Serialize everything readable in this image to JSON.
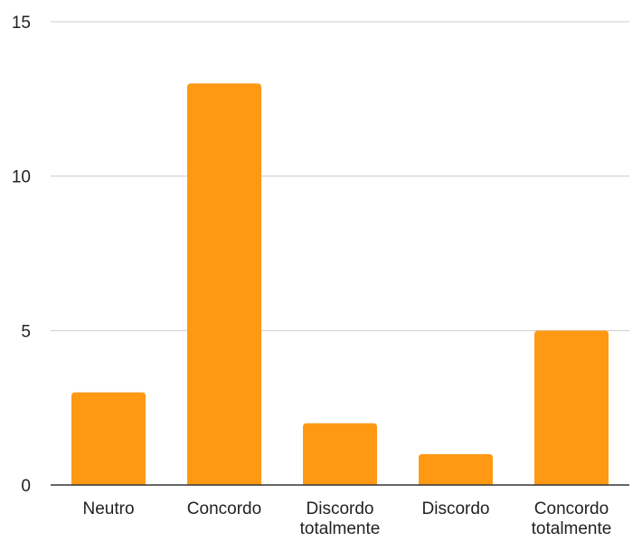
{
  "chart_data": {
    "type": "bar",
    "categories": [
      [
        "Neutro"
      ],
      [
        "Concordo"
      ],
      [
        "Discordo",
        "totalmente"
      ],
      [
        "Discordo"
      ],
      [
        "Concordo",
        "totalmente"
      ]
    ],
    "values": [
      3,
      13,
      2,
      1,
      5
    ],
    "ylim": [
      0,
      15
    ],
    "yticks": [
      0,
      5,
      10,
      15
    ],
    "grid": true,
    "colors": {
      "bar": "#FF9914",
      "grid": "#CCCCCC",
      "axis": "#333333"
    }
  }
}
